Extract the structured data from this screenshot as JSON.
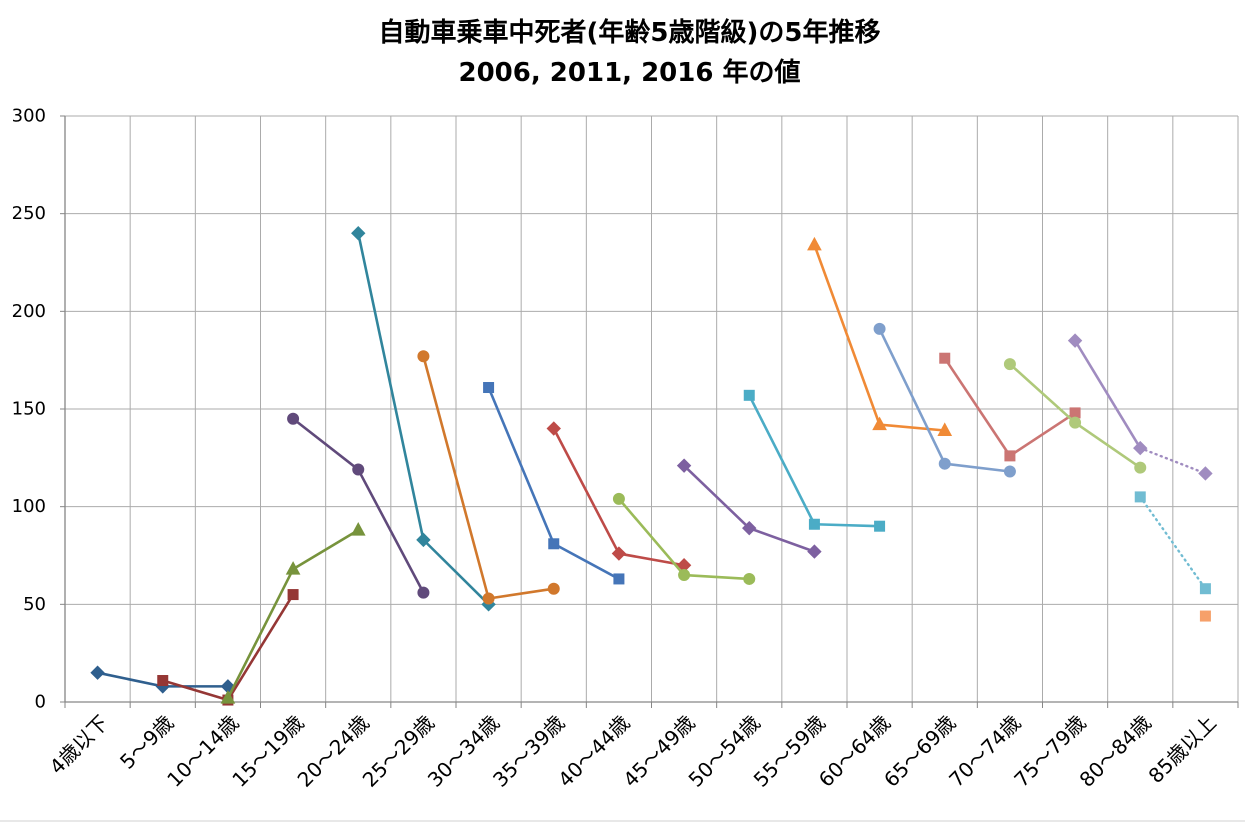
{
  "chart_data": {
    "type": "line",
    "title": "自動車乗車中死者(年齢5歳階級)の5年推移",
    "subtitle": "2006, 2011, 2016 年の値",
    "categories": [
      "4歳以下",
      "5～9歳",
      "10～14歳",
      "15～19歳",
      "20～24歳",
      "25～29歳",
      "30～34歳",
      "35～39歳",
      "40～44歳",
      "45～49歳",
      "50～54歳",
      "55～59歳",
      "60～64歳",
      "65～69歳",
      "70～74歳",
      "75～79歳",
      "80～84歳",
      "85歳以上"
    ],
    "ylim": [
      0,
      300
    ],
    "yticks": [
      0,
      50,
      100,
      150,
      200,
      250,
      300
    ],
    "grid": {
      "horizontal": true,
      "vertical": true
    },
    "legend": "none",
    "series": [
      {
        "color": "#2F5F8E",
        "marker": "diamond",
        "values": [
          15,
          8,
          8,
          null,
          null,
          null,
          null,
          null,
          null,
          null,
          null,
          null,
          null,
          null,
          null,
          null,
          null,
          null
        ]
      },
      {
        "color": "#953735",
        "marker": "square",
        "values": [
          null,
          11,
          1,
          55,
          null,
          null,
          null,
          null,
          null,
          null,
          null,
          null,
          null,
          null,
          null,
          null,
          null,
          null
        ]
      },
      {
        "color": "#77933C",
        "marker": "triangle",
        "values": [
          null,
          null,
          2,
          68,
          88,
          null,
          null,
          null,
          null,
          null,
          null,
          null,
          null,
          null,
          null,
          null,
          null,
          null
        ]
      },
      {
        "color": "#604A7B",
        "marker": "circle",
        "values": [
          null,
          null,
          null,
          145,
          119,
          56,
          null,
          null,
          null,
          null,
          null,
          null,
          null,
          null,
          null,
          null,
          null,
          null
        ]
      },
      {
        "color": "#31859C",
        "marker": "diamond",
        "values": [
          null,
          null,
          null,
          null,
          240,
          83,
          50,
          null,
          null,
          null,
          null,
          null,
          null,
          null,
          null,
          null,
          null,
          null
        ]
      },
      {
        "color": "#D1782C",
        "marker": "circle",
        "values": [
          null,
          null,
          null,
          null,
          null,
          177,
          53,
          58,
          null,
          null,
          null,
          null,
          null,
          null,
          null,
          null,
          null,
          null
        ]
      },
      {
        "color": "#4575B8",
        "marker": "square",
        "values": [
          null,
          null,
          null,
          null,
          null,
          null,
          161,
          81,
          63,
          null,
          null,
          null,
          null,
          null,
          null,
          null,
          null,
          null
        ]
      },
      {
        "color": "#BE4B48",
        "marker": "diamond",
        "values": [
          null,
          null,
          null,
          null,
          null,
          null,
          null,
          140,
          76,
          70,
          null,
          null,
          null,
          null,
          null,
          null,
          null,
          null
        ]
      },
      {
        "color": "#9BBB59",
        "marker": "circle",
        "values": [
          null,
          null,
          null,
          null,
          null,
          null,
          null,
          null,
          104,
          65,
          63,
          null,
          null,
          null,
          null,
          null,
          null,
          null
        ]
      },
      {
        "color": "#7D60A0",
        "marker": "diamond",
        "values": [
          null,
          null,
          null,
          null,
          null,
          null,
          null,
          null,
          null,
          121,
          89,
          77,
          null,
          null,
          null,
          null,
          null,
          null
        ]
      },
      {
        "color": "#4BACC6",
        "marker": "square",
        "values": [
          null,
          null,
          null,
          null,
          null,
          null,
          null,
          null,
          null,
          null,
          157,
          91,
          90,
          null,
          null,
          null,
          null,
          null
        ]
      },
      {
        "color": "#F08A36",
        "marker": "triangle",
        "values": [
          null,
          null,
          null,
          null,
          null,
          null,
          null,
          null,
          null,
          null,
          null,
          234,
          142,
          139,
          null,
          null,
          null,
          null
        ]
      },
      {
        "color": "#7F9FCC",
        "marker": "circle",
        "values": [
          null,
          null,
          null,
          null,
          null,
          null,
          null,
          null,
          null,
          null,
          null,
          null,
          191,
          122,
          118,
          null,
          null,
          null
        ]
      },
      {
        "color": "#CB7573",
        "marker": "square",
        "values": [
          null,
          null,
          null,
          null,
          null,
          null,
          null,
          null,
          null,
          null,
          null,
          null,
          null,
          176,
          126,
          148,
          null,
          null
        ]
      },
      {
        "color": "#AFC97A",
        "marker": "circle",
        "values": [
          null,
          null,
          null,
          null,
          null,
          null,
          null,
          null,
          null,
          null,
          null,
          null,
          null,
          null,
          173,
          143,
          120,
          null
        ]
      },
      {
        "color": "#A08CC0",
        "marker": "diamond",
        "values": [
          null,
          null,
          null,
          null,
          null,
          null,
          null,
          null,
          null,
          null,
          null,
          null,
          null,
          null,
          null,
          185,
          130,
          117
        ],
        "dotted": [
          false,
          true
        ]
      },
      {
        "color": "#71BCD2",
        "marker": "square",
        "values": [
          null,
          null,
          null,
          null,
          null,
          null,
          null,
          null,
          null,
          null,
          null,
          null,
          null,
          null,
          null,
          null,
          105,
          58
        ],
        "dotted": [
          true
        ]
      },
      {
        "color": "#F6A06A",
        "marker": "square",
        "values": [
          null,
          null,
          null,
          null,
          null,
          null,
          null,
          null,
          null,
          null,
          null,
          null,
          null,
          null,
          null,
          null,
          null,
          44
        ]
      }
    ]
  }
}
